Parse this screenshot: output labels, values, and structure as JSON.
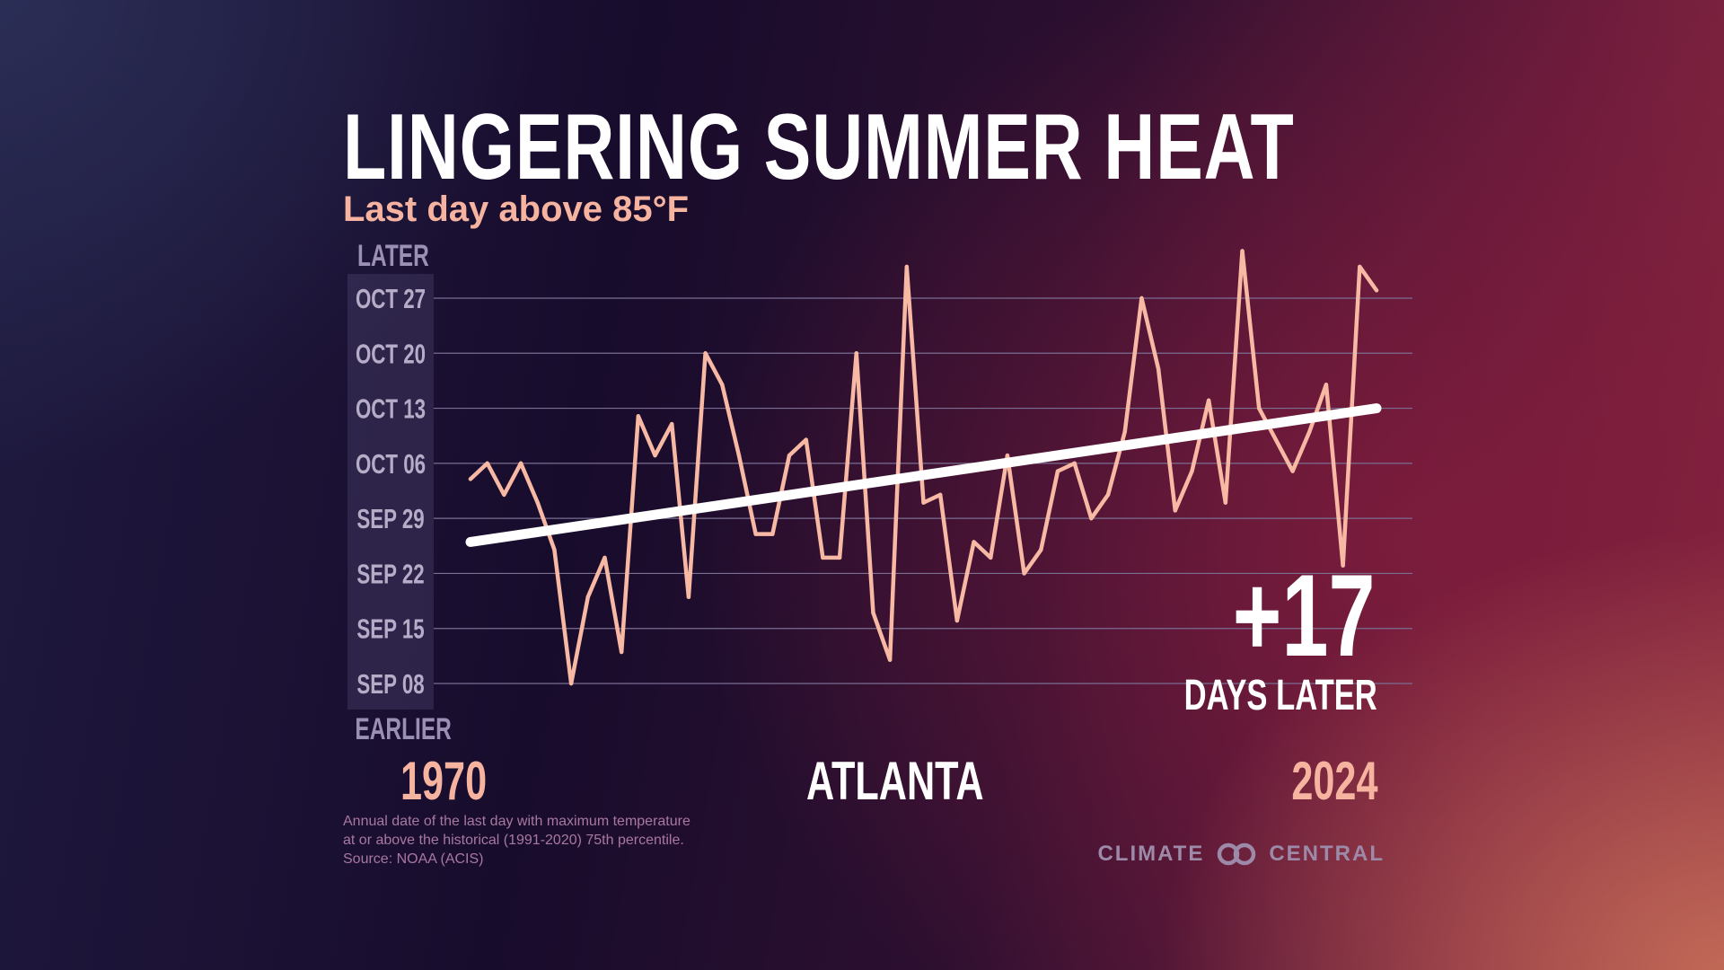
{
  "title": "LINGERING SUMMER HEAT",
  "subtitle": "Last day above 85°F",
  "y_label_top": "LATER",
  "y_label_bottom": "EARLIER",
  "x_start": "1970",
  "x_end": "2024",
  "city": "ATLANTA",
  "change_value": "+17",
  "change_label": "DAYS LATER",
  "footnote": {
    "line1": "Annual date of the last day with maximum temperature",
    "line2": "at or above the historical (1991-2020) 75th percentile.",
    "line3": "Source: NOAA (ACIS)"
  },
  "brand": {
    "left": "CLIMATE",
    "right": "CENTRAL",
    "logo_icon": "interlocking-circles-icon"
  },
  "colors": {
    "line": "#f8b9a4",
    "trend": "#ffffff",
    "accent": "#f6b3a0",
    "grid": "#7a6e92"
  },
  "chart_data": {
    "type": "line",
    "title": "LINGERING SUMMER HEAT",
    "subtitle": "Last day above 85°F",
    "xlabel": "",
    "ylabel": "",
    "y_unit": "days after Sep 8",
    "ylim": [
      0,
      49
    ],
    "y_ticks": [
      {
        "value": 0,
        "label": "SEP 08"
      },
      {
        "value": 7,
        "label": "SEP 15"
      },
      {
        "value": 14,
        "label": "SEP 22"
      },
      {
        "value": 21,
        "label": "SEP 29"
      },
      {
        "value": 28,
        "label": "OCT 06"
      },
      {
        "value": 35,
        "label": "OCT 13"
      },
      {
        "value": 42,
        "label": "OCT 20"
      },
      {
        "value": 49,
        "label": "OCT 27"
      }
    ],
    "grid": true,
    "x": [
      1970,
      1971,
      1972,
      1973,
      1974,
      1975,
      1976,
      1977,
      1978,
      1979,
      1980,
      1981,
      1982,
      1983,
      1984,
      1985,
      1986,
      1987,
      1988,
      1989,
      1990,
      1991,
      1992,
      1993,
      1994,
      1995,
      1996,
      1997,
      1998,
      1999,
      2000,
      2001,
      2002,
      2003,
      2004,
      2005,
      2006,
      2007,
      2008,
      2009,
      2010,
      2011,
      2012,
      2013,
      2014,
      2015,
      2016,
      2017,
      2018,
      2019,
      2020,
      2021,
      2022,
      2023,
      2024
    ],
    "series": [
      {
        "name": "Last day above 85°F",
        "values": [
          26,
          28,
          24,
          28,
          23,
          17,
          0,
          11,
          16,
          4,
          34,
          29,
          33,
          11,
          42,
          38,
          29,
          19,
          19,
          29,
          31,
          16,
          16,
          42,
          9,
          3,
          53,
          23,
          24,
          8,
          18,
          16,
          29,
          14,
          17,
          27,
          28,
          21,
          24,
          32,
          49,
          40,
          22,
          27,
          36,
          23,
          55,
          35,
          31,
          27,
          32,
          38,
          15,
          53,
          50
        ]
      },
      {
        "name": "Trend",
        "values": [
          18,
          null,
          null,
          null,
          null,
          null,
          null,
          null,
          null,
          null,
          null,
          null,
          null,
          null,
          null,
          null,
          null,
          null,
          null,
          null,
          null,
          null,
          null,
          null,
          null,
          null,
          null,
          null,
          null,
          null,
          null,
          null,
          null,
          null,
          null,
          null,
          null,
          null,
          null,
          null,
          null,
          null,
          null,
          null,
          null,
          null,
          null,
          null,
          null,
          null,
          null,
          null,
          null,
          null,
          35
        ]
      }
    ],
    "annotations": [
      "+17",
      "DAYS LATER"
    ]
  }
}
